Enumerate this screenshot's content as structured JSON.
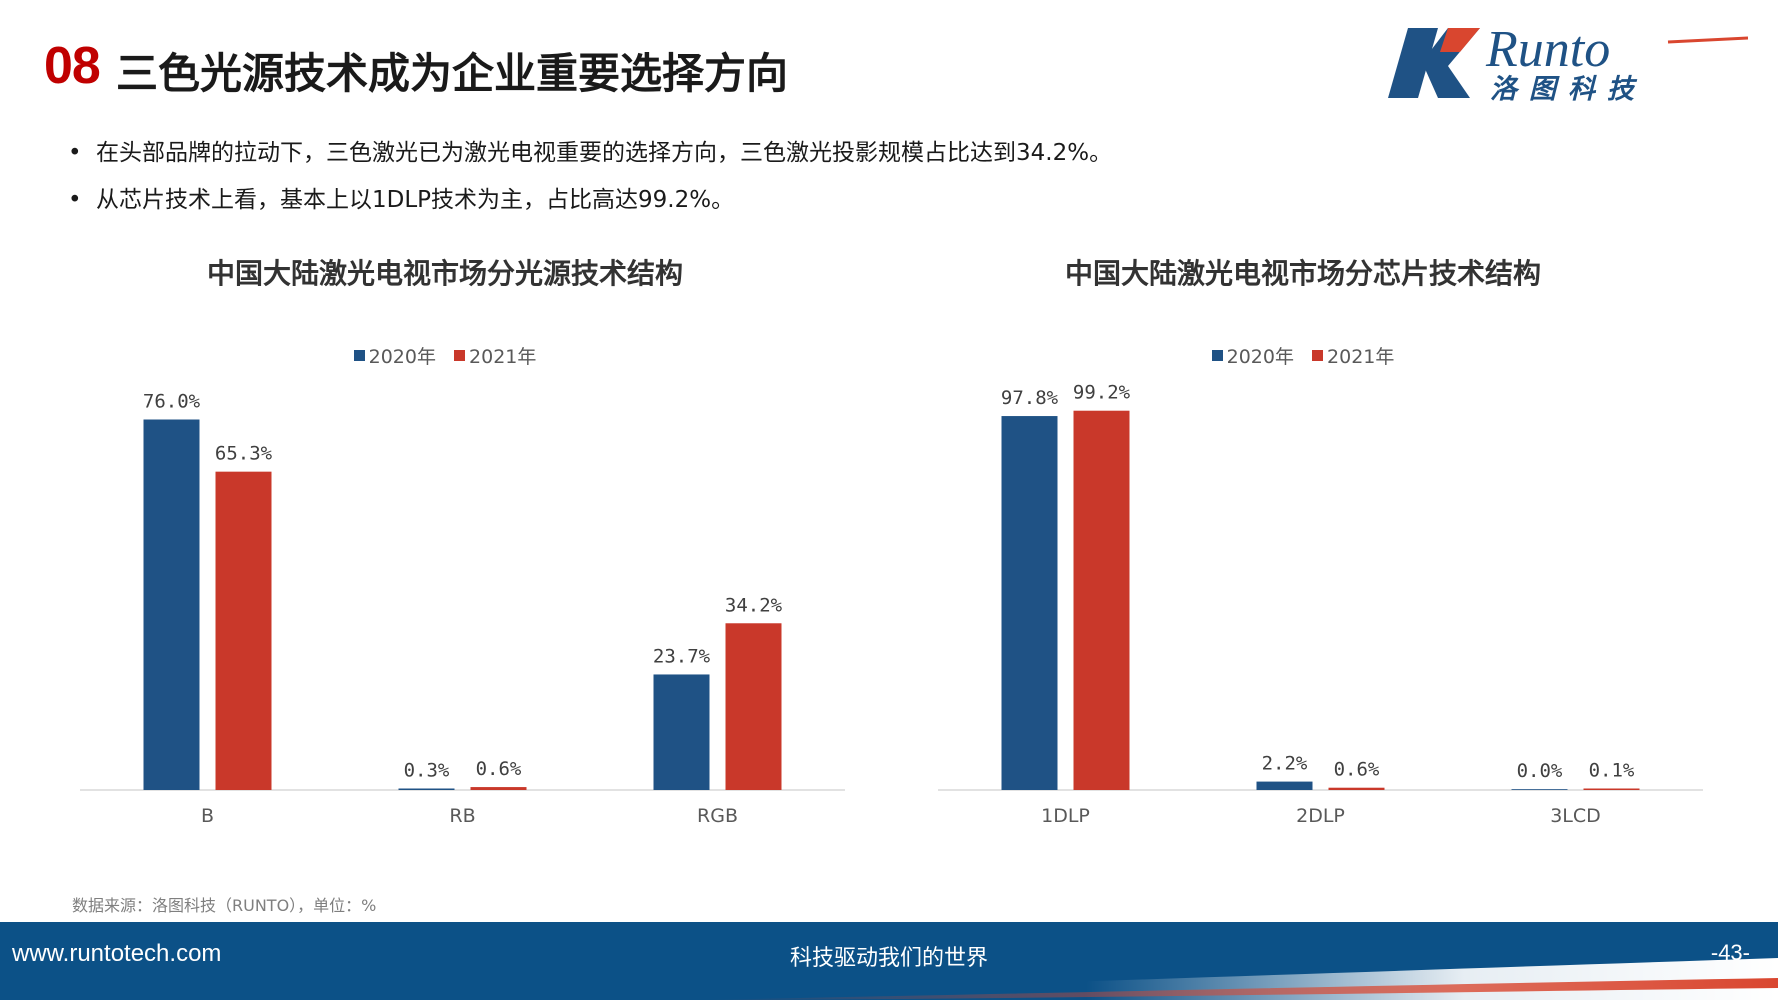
{
  "header": {
    "number": "08",
    "title": "三色光源技术成为企业重要选择方向",
    "logo_brand": "Runto",
    "logo_sub": "洛图科技"
  },
  "bullets": [
    "在头部品牌的拉动下，三色激光已为激光电视重要的选择方向，三色激光投影规模占比达到34.2%。",
    "从芯片技术上看，基本上以1DLP技术为主，占比高达99.2%。"
  ],
  "chart_data": [
    {
      "type": "bar",
      "title": "中国大陆激光电视市场分光源技术结构",
      "categories": [
        "B",
        "RB",
        "RGB"
      ],
      "series": [
        {
          "name": "2020年",
          "values": [
            76.0,
            0.3,
            23.7
          ],
          "labels": [
            "76.0%",
            "0.3%",
            "23.7%"
          ]
        },
        {
          "name": "2021年",
          "values": [
            65.3,
            0.6,
            34.2
          ],
          "labels": [
            "65.3%",
            "0.6%",
            "34.2%"
          ]
        }
      ],
      "ylim": [
        0,
        80
      ],
      "legend": "top-center",
      "grid": false
    },
    {
      "type": "bar",
      "title": "中国大陆激光电视市场分芯片技术结构",
      "categories": [
        "1DLP",
        "2DLP",
        "3LCD"
      ],
      "series": [
        {
          "name": "2020年",
          "values": [
            97.8,
            2.2,
            0.0
          ],
          "labels": [
            "97.8%",
            "2.2%",
            "0.0%"
          ]
        },
        {
          "name": "2021年",
          "values": [
            99.2,
            0.6,
            0.1
          ],
          "labels": [
            "99.2%",
            "0.6%",
            "0.1%"
          ]
        }
      ],
      "ylim": [
        0,
        102
      ],
      "legend": "top-center",
      "grid": false
    }
  ],
  "colors": {
    "series_2020": "#1f5285",
    "series_2021": "#c9382a",
    "title_number": "#c00000",
    "footer_blue": "#0c5187"
  },
  "source": "数据来源：洛图科技（RUNTO），单位：%",
  "footer": {
    "url": "www.runtotech.com",
    "slogan": "科技驱动我们的世界",
    "page": "-43-"
  }
}
